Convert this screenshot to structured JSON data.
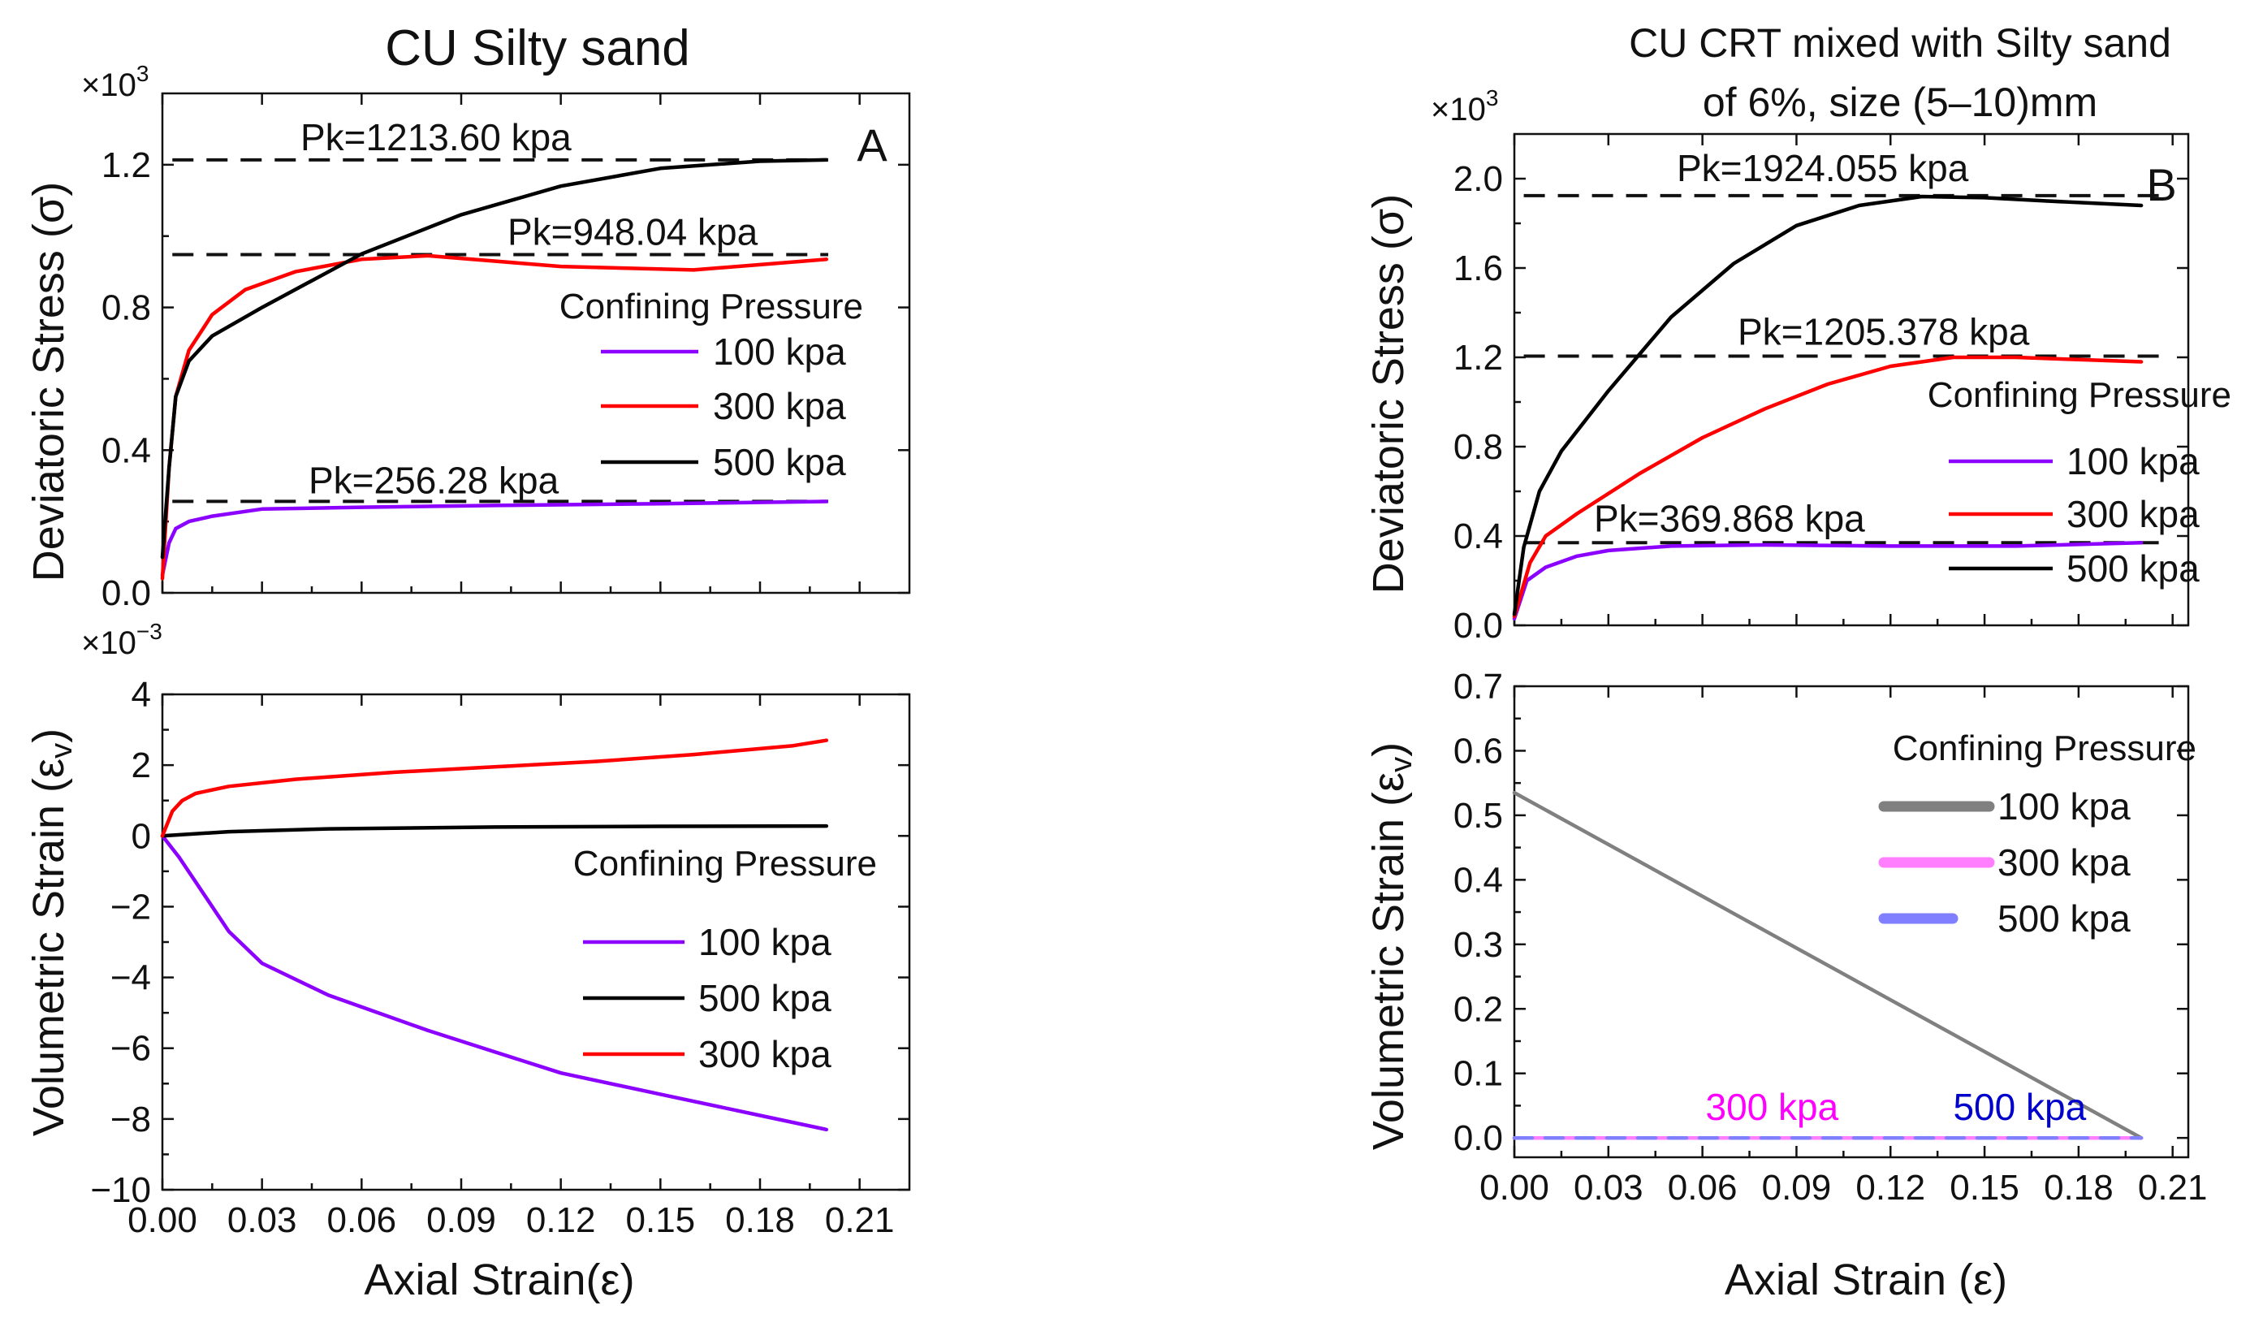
{
  "chart_data": [
    {
      "id": "A-top",
      "type": "line",
      "panel_label": "A",
      "title": "CU Silty sand",
      "xlabel": "",
      "ylabel": "Deviatoric Stress (σ)",
      "multiplier": "×10",
      "multiplier_exp": "3",
      "xlim": [
        0,
        0.225
      ],
      "ylim": [
        0,
        1.4
      ],
      "yticks": [
        0.0,
        0.4,
        0.8,
        1.2
      ],
      "ytick_labels": [
        "0.0",
        "0.4",
        "0.8",
        "1.2"
      ],
      "legend_title": "Confining Pressure",
      "reference_lines": [
        {
          "y": 1.2136,
          "label": "Pk=1213.60 kpa",
          "x_start": 0.003
        },
        {
          "y": 0.948,
          "label": "Pk=948.04 kpa",
          "x_start": 0.003
        },
        {
          "y": 0.2563,
          "label": "Pk=256.28 kpa",
          "x_start": 0.003
        }
      ],
      "series": [
        {
          "name": "100 kpa",
          "color": "#8B00FF",
          "x": [
            0.0,
            0.002,
            0.004,
            0.008,
            0.015,
            0.03,
            0.06,
            0.1,
            0.15,
            0.2
          ],
          "y": [
            0.05,
            0.14,
            0.18,
            0.2,
            0.215,
            0.235,
            0.24,
            0.245,
            0.25,
            0.256
          ]
        },
        {
          "name": "300 kpa",
          "color": "#FF0000",
          "x": [
            0.0,
            0.002,
            0.004,
            0.008,
            0.015,
            0.025,
            0.04,
            0.06,
            0.08,
            0.1,
            0.12,
            0.14,
            0.16,
            0.18,
            0.2
          ],
          "y": [
            0.04,
            0.35,
            0.55,
            0.68,
            0.78,
            0.85,
            0.9,
            0.935,
            0.945,
            0.93,
            0.915,
            0.91,
            0.905,
            0.92,
            0.935
          ]
        },
        {
          "name": "500 kpa",
          "color": "#000000",
          "x": [
            0.0,
            0.002,
            0.004,
            0.008,
            0.015,
            0.03,
            0.06,
            0.09,
            0.12,
            0.15,
            0.18,
            0.2
          ],
          "y": [
            0.1,
            0.35,
            0.55,
            0.65,
            0.72,
            0.8,
            0.95,
            1.06,
            1.14,
            1.19,
            1.21,
            1.2136
          ]
        }
      ]
    },
    {
      "id": "A-bottom",
      "type": "line",
      "xlabel": "Axial Strain(ε)",
      "ylabel": "Volumetric Strain (ε",
      "ylabel_sub": "v",
      "ylabel_close": ")",
      "multiplier": "×10",
      "multiplier_exp": "−3",
      "xlim": [
        0,
        0.225
      ],
      "ylim": [
        -10,
        4
      ],
      "xticks": [
        0.0,
        0.03,
        0.06,
        0.09,
        0.12,
        0.15,
        0.18,
        0.21
      ],
      "xtick_labels": [
        "0.00",
        "0.03",
        "0.06",
        "0.09",
        "0.12",
        "0.15",
        "0.18",
        "0.21"
      ],
      "yticks": [
        -10,
        -8,
        -6,
        -4,
        -2,
        0,
        2,
        4
      ],
      "ytick_labels": [
        "−10",
        "−8",
        "−6",
        "−4",
        "−2",
        "0",
        "2",
        "4"
      ],
      "legend_title": "Confining Pressure",
      "series": [
        {
          "name": "100 kpa",
          "color": "#8B00FF",
          "x": [
            0.0,
            0.005,
            0.01,
            0.02,
            0.03,
            0.05,
            0.08,
            0.1,
            0.12,
            0.15,
            0.18,
            0.2
          ],
          "y": [
            0.0,
            -0.6,
            -1.3,
            -2.7,
            -3.6,
            -4.5,
            -5.5,
            -6.1,
            -6.7,
            -7.3,
            -7.9,
            -8.3
          ]
        },
        {
          "name": "500 kpa",
          "color": "#000000",
          "x": [
            0.0,
            0.02,
            0.05,
            0.1,
            0.15,
            0.2
          ],
          "y": [
            0.0,
            0.12,
            0.2,
            0.25,
            0.27,
            0.28
          ]
        },
        {
          "name": "300 kpa",
          "color": "#FF0000",
          "x": [
            0.0,
            0.003,
            0.006,
            0.01,
            0.02,
            0.04,
            0.07,
            0.1,
            0.13,
            0.16,
            0.19,
            0.2
          ],
          "y": [
            0.0,
            0.7,
            1.0,
            1.2,
            1.4,
            1.6,
            1.8,
            1.95,
            2.1,
            2.3,
            2.55,
            2.7
          ]
        }
      ]
    },
    {
      "id": "B-top",
      "type": "line",
      "panel_label": "B",
      "title_lines": [
        "CU CRT mixed with Silty sand",
        "of 6%, size (5–10)mm"
      ],
      "xlabel": "",
      "ylabel": "Deviatoric Stress (σ)",
      "multiplier": "×10",
      "multiplier_exp": "3",
      "xlim": [
        0,
        0.215
      ],
      "ylim": [
        0,
        2.2
      ],
      "yticks": [
        0.0,
        0.4,
        0.8,
        1.2,
        1.6,
        2.0
      ],
      "ytick_labels": [
        "0.0",
        "0.4",
        "0.8",
        "1.2",
        "1.6",
        "2.0"
      ],
      "legend_title": "Confining Pressure",
      "reference_lines": [
        {
          "y": 1.924,
          "label": "Pk=1924.055 kpa",
          "x_start": 0.003
        },
        {
          "y": 1.2054,
          "label": "Pk=1205.378 kpa",
          "x_start": 0.003
        },
        {
          "y": 0.3699,
          "label": "Pk=369.868 kpa",
          "x_start": 0.003
        }
      ],
      "series": [
        {
          "name": "100 kpa",
          "color": "#8B00FF",
          "x": [
            0.0,
            0.004,
            0.01,
            0.02,
            0.03,
            0.05,
            0.08,
            0.12,
            0.16,
            0.2
          ],
          "y": [
            0.03,
            0.2,
            0.26,
            0.31,
            0.335,
            0.355,
            0.36,
            0.355,
            0.355,
            0.37
          ]
        },
        {
          "name": "300 kpa",
          "color": "#FF0000",
          "x": [
            0.0,
            0.005,
            0.01,
            0.02,
            0.04,
            0.06,
            0.08,
            0.1,
            0.12,
            0.14,
            0.16,
            0.18,
            0.2
          ],
          "y": [
            0.04,
            0.28,
            0.4,
            0.5,
            0.68,
            0.84,
            0.97,
            1.08,
            1.16,
            1.2,
            1.2,
            1.19,
            1.18
          ]
        },
        {
          "name": "500 kpa",
          "color": "#000000",
          "x": [
            0.0,
            0.003,
            0.008,
            0.015,
            0.03,
            0.05,
            0.07,
            0.09,
            0.11,
            0.13,
            0.15,
            0.17,
            0.2
          ],
          "y": [
            0.05,
            0.35,
            0.6,
            0.78,
            1.05,
            1.38,
            1.62,
            1.79,
            1.88,
            1.92,
            1.915,
            1.9,
            1.88
          ]
        }
      ]
    },
    {
      "id": "B-bottom",
      "type": "line",
      "xlabel": "Axial Strain (ε)",
      "ylabel": "Volumetric Strain (ε",
      "ylabel_sub": "v",
      "ylabel_close": ")",
      "xlim": [
        0,
        0.215
      ],
      "ylim": [
        -0.03,
        0.7
      ],
      "xticks": [
        0.0,
        0.03,
        0.06,
        0.09,
        0.12,
        0.15,
        0.18,
        0.21
      ],
      "xtick_labels": [
        "0.00",
        "0.03",
        "0.06",
        "0.09",
        "0.12",
        "0.15",
        "0.18",
        "0.21"
      ],
      "yticks": [
        0.0,
        0.1,
        0.2,
        0.3,
        0.4,
        0.5,
        0.6,
        0.7
      ],
      "ytick_labels": [
        "0.0",
        "0.1",
        "0.2",
        "0.3",
        "0.4",
        "0.5",
        "0.6",
        "0.7"
      ],
      "legend_title": "Confining Pressure",
      "annotations": [
        {
          "text": "300 kpa",
          "x": 0.061,
          "y": 0.01,
          "color": "#FF00FF"
        },
        {
          "text": "500 kpa",
          "x": 0.14,
          "y": 0.01,
          "color": "#0000CC"
        }
      ],
      "series": [
        {
          "name": "100 kpa",
          "color": "#808080",
          "x": [
            0.0,
            0.2
          ],
          "y": [
            0.535,
            0.0
          ]
        },
        {
          "name": "300 kpa",
          "color": "#FF7FFF",
          "x": [
            0.0,
            0.2
          ],
          "y": [
            0.0,
            0.0
          ]
        },
        {
          "name": "500 kpa",
          "color": "#7F7FFF",
          "x": [
            0.0,
            0.2
          ],
          "y": [
            0.0,
            0.0
          ]
        }
      ]
    }
  ]
}
